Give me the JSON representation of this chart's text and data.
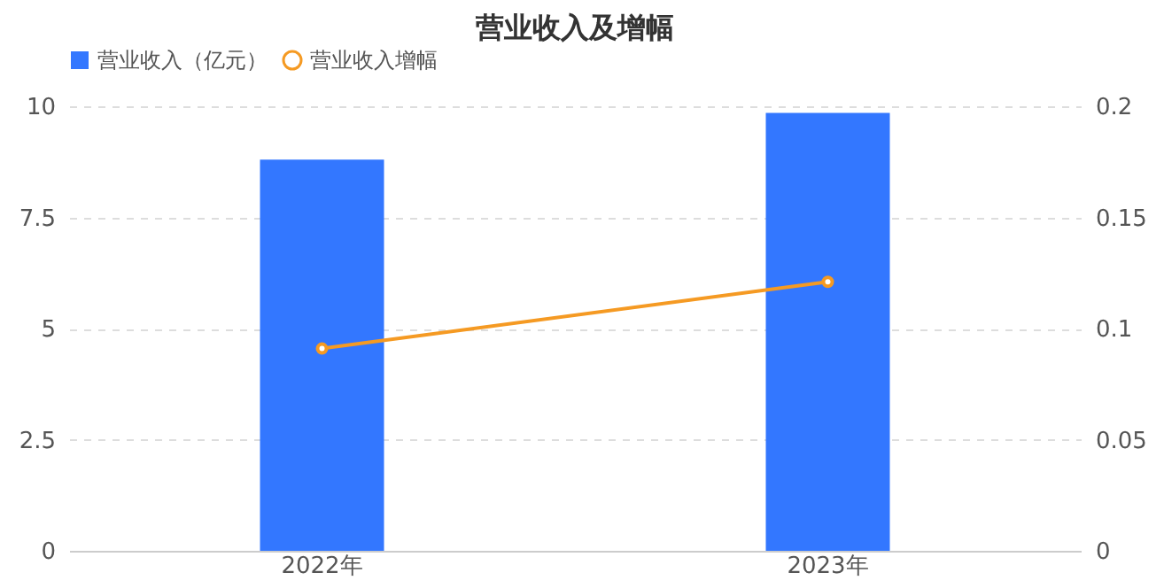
{
  "chart_data": {
    "type": "bar",
    "title": "营业收入及增幅",
    "categories": [
      "2022年",
      "2023年"
    ],
    "series": [
      {
        "name": "营业收入（亿元）",
        "color": "#3377ff",
        "values": [
          8.8,
          9.85
        ]
      },
      {
        "name": "营业收入增幅",
        "type": "line",
        "axis": "y2",
        "color": "#f59a23",
        "values": [
          0.091,
          0.121
        ],
        "marker": "circle"
      }
    ],
    "ylim": [
      0,
      10
    ],
    "yticks": [
      0,
      2.5,
      5,
      7.5,
      10
    ],
    "y2lim": [
      0,
      0.2
    ],
    "y2ticks": [
      0,
      0.05,
      0.1,
      0.15,
      0.2
    ],
    "grid": "y",
    "legend": "top left"
  }
}
